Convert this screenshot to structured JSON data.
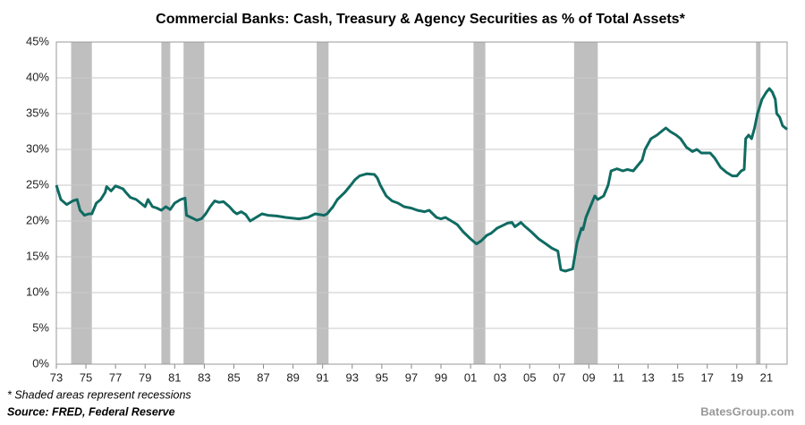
{
  "chart_data": {
    "type": "line",
    "title": "Commercial Banks: Cash, Treasury & Agency Securities as % of Total Assets*",
    "footnote": "* Shaded areas represent recessions",
    "source": "Source: FRED, Federal Reserve",
    "credit": "BatesGroup.com",
    "x": [
      1973.0,
      1973.3,
      1973.7,
      1974.1,
      1974.4,
      1974.6,
      1974.9,
      1975.2,
      1975.4,
      1975.7,
      1976.0,
      1976.3,
      1976.4,
      1976.7,
      1977.0,
      1977.5,
      1977.7,
      1978.0,
      1978.4,
      1978.7,
      1979.0,
      1979.2,
      1979.5,
      1979.8,
      1980.1,
      1980.4,
      1980.7,
      1981.0,
      1981.4,
      1981.7,
      1981.8,
      1982.1,
      1982.5,
      1982.8,
      1983.1,
      1983.4,
      1983.7,
      1984.0,
      1984.3,
      1984.7,
      1985.0,
      1985.2,
      1985.5,
      1985.8,
      1986.1,
      1986.5,
      1986.9,
      1987.3,
      1987.9,
      1988.5,
      1989.4,
      1990.0,
      1990.5,
      1991.1,
      1991.3,
      1991.7,
      1992.0,
      1992.5,
      1992.9,
      1993.2,
      1993.5,
      1994.0,
      1994.5,
      1994.7,
      1994.9,
      1995.3,
      1995.7,
      1996.1,
      1996.5,
      1997.0,
      1997.4,
      1997.9,
      1998.2,
      1998.7,
      1999.0,
      1999.3,
      1999.7,
      2000.1,
      2000.5,
      2001.0,
      2001.4,
      2001.7,
      2002.1,
      2002.4,
      2002.8,
      2003.2,
      2003.5,
      2003.8,
      2004.0,
      2004.4,
      2004.7,
      2005.1,
      2005.6,
      2006.1,
      2006.5,
      2006.9,
      2007.1,
      2007.4,
      2007.9,
      2008.2,
      2008.5,
      2008.6,
      2008.8,
      2009.1,
      2009.4,
      2009.6,
      2010.0,
      2010.3,
      2010.5,
      2010.9,
      2011.3,
      2011.6,
      2012.0,
      2012.2,
      2012.6,
      2012.8,
      2013.2,
      2013.6,
      2013.9,
      2014.2,
      2014.5,
      2014.9,
      2015.2,
      2015.6,
      2016.0,
      2016.3,
      2016.6,
      2017.2,
      2017.5,
      2017.9,
      2018.3,
      2018.7,
      2019.0,
      2019.3,
      2019.5,
      2019.6,
      2019.8,
      2020.0,
      2020.2,
      2020.4,
      2020.7,
      2021.0,
      2021.2,
      2021.4,
      2021.6,
      2021.7,
      2021.9,
      2022.1,
      2022.4
    ],
    "series": [
      {
        "color": "#0f6b62",
        "values": [
          25,
          23,
          22.3,
          22.8,
          23,
          21.5,
          20.8,
          21,
          21,
          22.5,
          23,
          24,
          24.8,
          24.2,
          24.9,
          24.5,
          24,
          23.3,
          23,
          22.5,
          22,
          23,
          22,
          21.8,
          21.5,
          22,
          21.6,
          22.5,
          23,
          23.2,
          20.8,
          20.5,
          20.1,
          20.3,
          21,
          22,
          22.8,
          22.6,
          22.7,
          22,
          21.3,
          21,
          21.3,
          20.9,
          20,
          20.5,
          21,
          20.8,
          20.7,
          20.5,
          20.3,
          20.5,
          21,
          20.8,
          21,
          22,
          23,
          24,
          25,
          25.8,
          26.3,
          26.6,
          26.5,
          26,
          25,
          23.5,
          22.8,
          22.5,
          22,
          21.8,
          21.5,
          21.3,
          21.5,
          20.5,
          20.3,
          20.5,
          20,
          19.5,
          18.5,
          17.5,
          16.8,
          17.2,
          18,
          18.3,
          19,
          19.4,
          19.7,
          19.8,
          19.2,
          19.8,
          19.2,
          18.5,
          17.5,
          16.8,
          16.2,
          15.8,
          13.2,
          13,
          13.3,
          17,
          19,
          18.8,
          20.5,
          22,
          23.5,
          23,
          23.5,
          25,
          27,
          27.3,
          27,
          27.2,
          27,
          27.5,
          28.5,
          30,
          31.5,
          32,
          32.5,
          33,
          32.5,
          32,
          31.5,
          30.3,
          29.7,
          30,
          29.5,
          29.5,
          28.8,
          27.5,
          26.8,
          26.3,
          26.3,
          27,
          27.2,
          31.5,
          32,
          31.5,
          33,
          35,
          37,
          38,
          38.5,
          38,
          37,
          35,
          34.5,
          33.3,
          32.8
        ]
      }
    ],
    "recessions": [
      [
        1974.0,
        1975.4
      ],
      [
        1980.1,
        1980.7
      ],
      [
        1981.6,
        1983.0
      ],
      [
        1990.6,
        1991.4
      ],
      [
        2001.2,
        2002.0
      ],
      [
        2008.0,
        2009.6
      ],
      [
        2020.3,
        2020.6
      ]
    ],
    "recession_color": "#bfbfbf",
    "xlim": [
      1973,
      2022.4
    ],
    "xticks": [
      {
        "value": 1973,
        "label": "73"
      },
      {
        "value": 1975,
        "label": "75"
      },
      {
        "value": 1977,
        "label": "77"
      },
      {
        "value": 1979,
        "label": "79"
      },
      {
        "value": 1981,
        "label": "81"
      },
      {
        "value": 1983,
        "label": "83"
      },
      {
        "value": 1985,
        "label": "85"
      },
      {
        "value": 1987,
        "label": "87"
      },
      {
        "value": 1989,
        "label": "89"
      },
      {
        "value": 1991,
        "label": "91"
      },
      {
        "value": 1993,
        "label": "93"
      },
      {
        "value": 1995,
        "label": "95"
      },
      {
        "value": 1997,
        "label": "97"
      },
      {
        "value": 1999,
        "label": "99"
      },
      {
        "value": 2001,
        "label": "01"
      },
      {
        "value": 2003,
        "label": "03"
      },
      {
        "value": 2005,
        "label": "05"
      },
      {
        "value": 2007,
        "label": "07"
      },
      {
        "value": 2009,
        "label": "09"
      },
      {
        "value": 2011,
        "label": "11"
      },
      {
        "value": 2013,
        "label": "13"
      },
      {
        "value": 2015,
        "label": "15"
      },
      {
        "value": 2017,
        "label": "17"
      },
      {
        "value": 2019,
        "label": "19"
      },
      {
        "value": 2021,
        "label": "21"
      }
    ],
    "ylim": [
      0,
      45
    ],
    "yticks": [
      {
        "value": 0,
        "label": "0%"
      },
      {
        "value": 5,
        "label": "5%"
      },
      {
        "value": 10,
        "label": "10%"
      },
      {
        "value": 15,
        "label": "15%"
      },
      {
        "value": 20,
        "label": "20%"
      },
      {
        "value": 25,
        "label": "25%"
      },
      {
        "value": 30,
        "label": "30%"
      },
      {
        "value": 35,
        "label": "35%"
      },
      {
        "value": 40,
        "label": "40%"
      },
      {
        "value": 45,
        "label": "45%"
      }
    ],
    "grid": true
  }
}
